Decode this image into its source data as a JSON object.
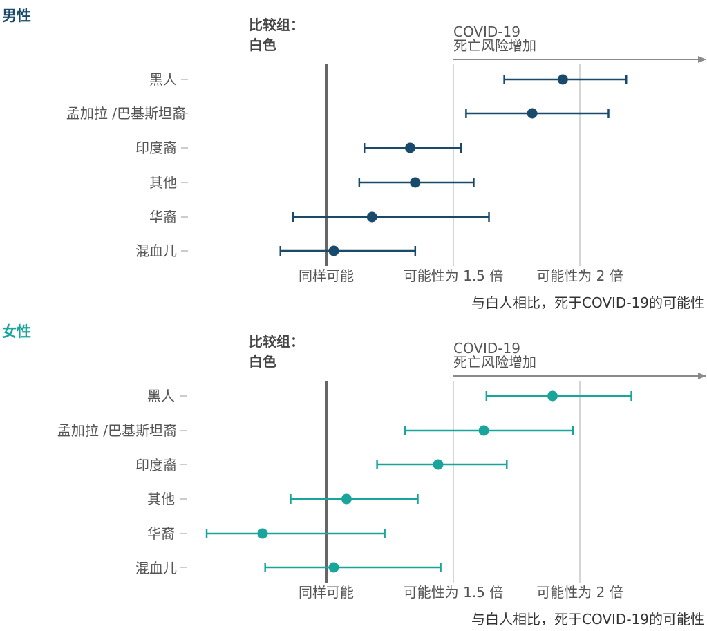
{
  "chart_data": [
    {
      "type": "forest",
      "title": "男性",
      "comparison_label": [
        "比较组：",
        "白色"
      ],
      "risk_label": [
        "COVID-19",
        "死亡风险增加"
      ],
      "tick_labels": [
        "同样可能",
        "可能性为 1.5 倍",
        "可能性为 2 倍"
      ],
      "xlabel": "与白人相比，死于COVID-19的可能性",
      "x_ticks": [
        1,
        1.5,
        2
      ],
      "categories": [
        "黑人",
        "孟加拉 /巴基斯坦裔",
        "印度裔",
        "其他",
        "华裔",
        "混血儿"
      ],
      "estimate": [
        1.93,
        1.81,
        1.33,
        1.35,
        1.18,
        1.03
      ],
      "ci_low": [
        1.7,
        1.55,
        1.15,
        1.13,
        0.87,
        0.82
      ],
      "ci_high": [
        2.18,
        2.11,
        1.53,
        1.58,
        1.64,
        1.35
      ],
      "color": "#1a4a6b"
    },
    {
      "type": "forest",
      "title": "女性",
      "comparison_label": [
        "比较组：",
        "白色"
      ],
      "risk_label": [
        "COVID-19",
        "死亡风险增加"
      ],
      "tick_labels": [
        "同样可能",
        "可能性为 1.5 倍",
        "可能性为 2 倍"
      ],
      "xlabel": "与白人相比，死于COVID-19的可能性",
      "x_ticks": [
        1,
        1.5,
        2
      ],
      "categories": [
        "黑人",
        "孟加拉 /巴基斯坦裔",
        "印度裔",
        "其他",
        "华裔",
        "混血儿"
      ],
      "estimate": [
        1.89,
        1.62,
        1.44,
        1.08,
        0.75,
        1.03
      ],
      "ci_low": [
        1.63,
        1.31,
        1.2,
        0.86,
        0.53,
        0.76
      ],
      "ci_high": [
        2.2,
        1.97,
        1.71,
        1.36,
        1.23,
        1.45
      ],
      "color": "#1aa59c"
    }
  ]
}
